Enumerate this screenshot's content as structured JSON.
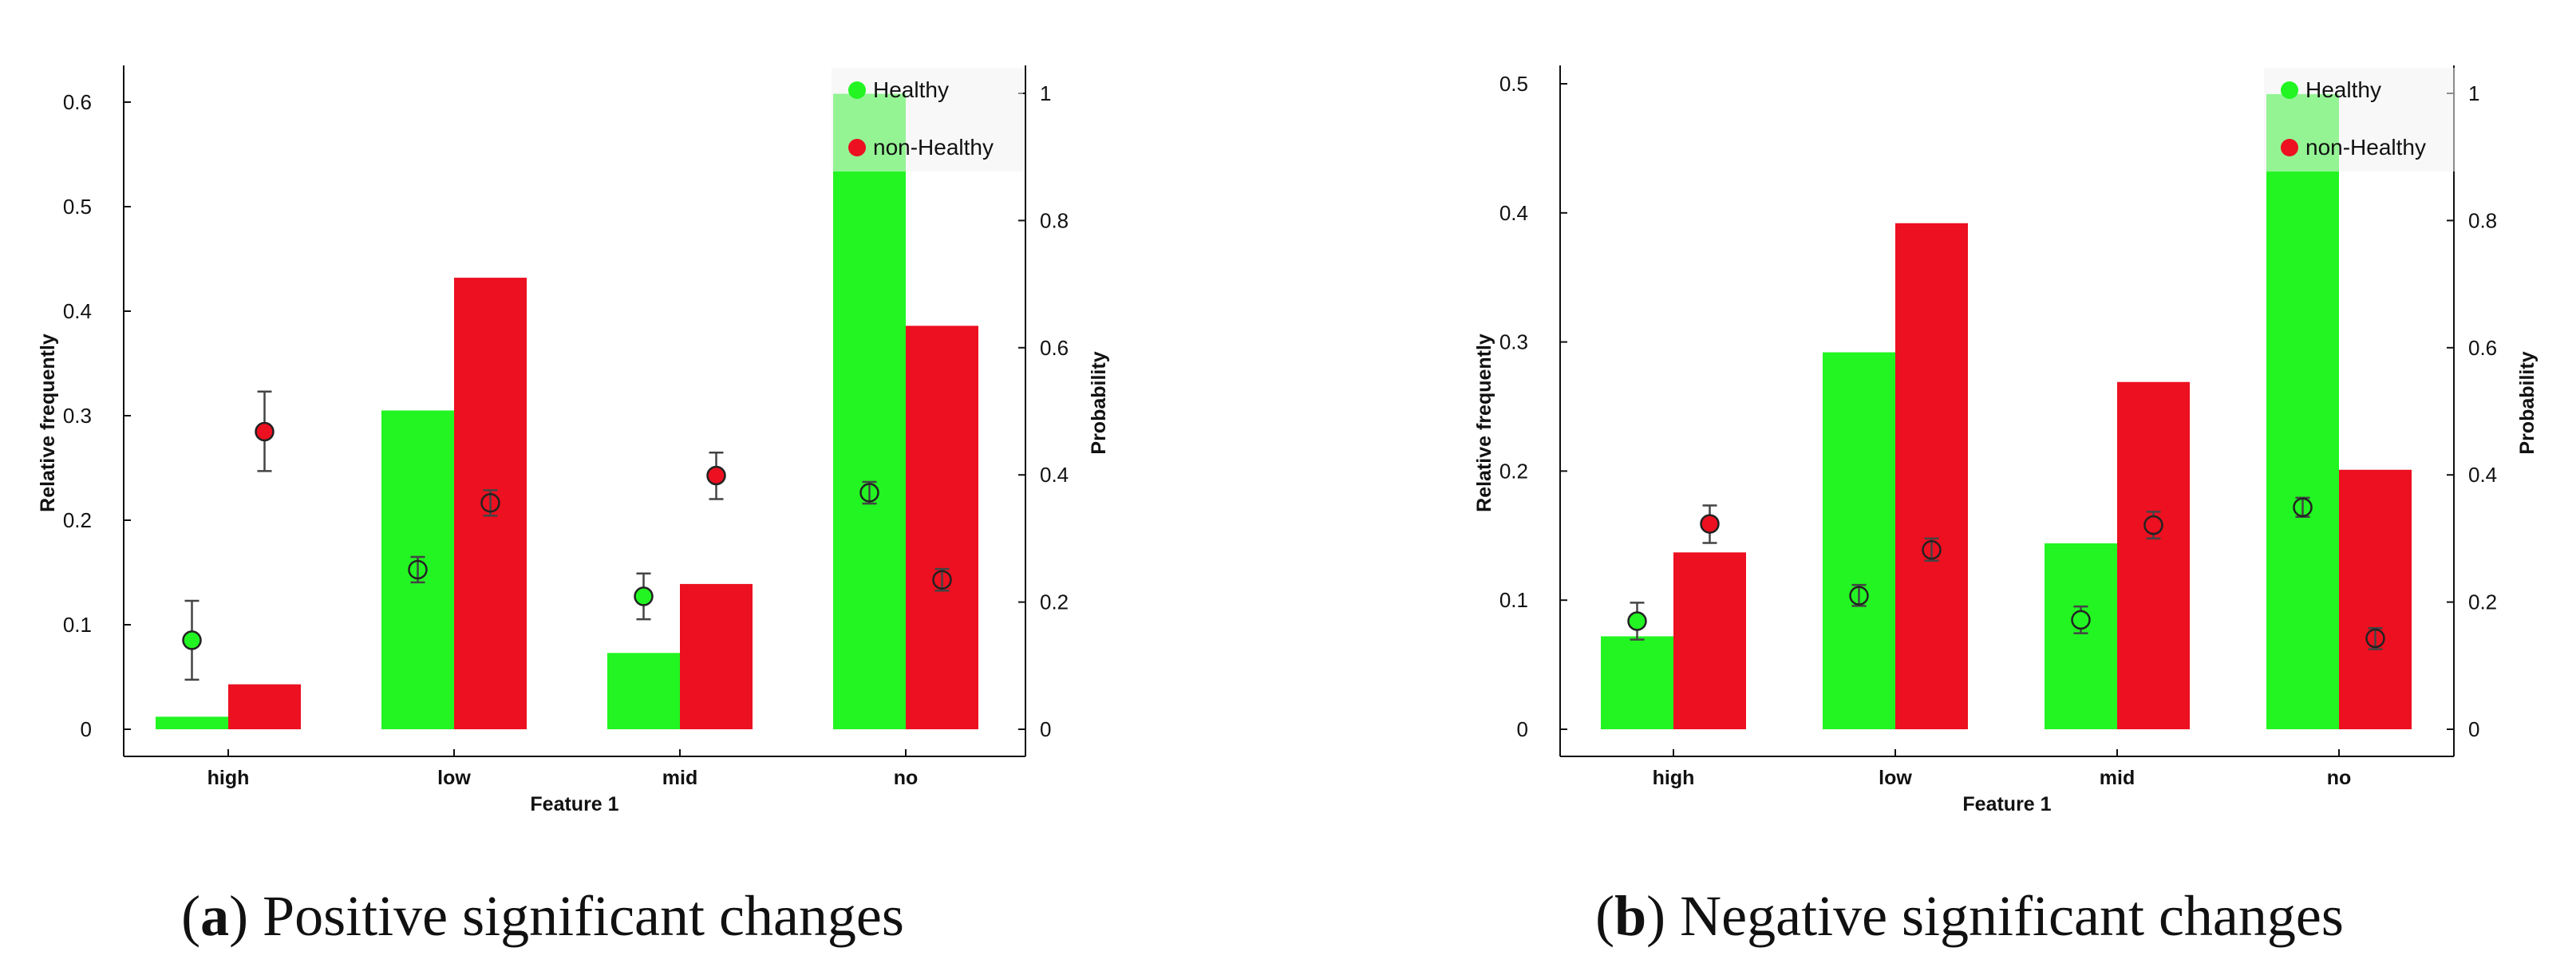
{
  "figure": {
    "colors": {
      "healthy": "#22f522",
      "non_healthy": "#ec1020",
      "legend_bg": "#f2f2f2",
      "axis": "#111111"
    },
    "captions": [
      {
        "letter": "a",
        "text": " Positive significant changes"
      },
      {
        "letter": "b",
        "text": " Negative significant changes"
      }
    ]
  },
  "chart_data": [
    {
      "type": "bar",
      "panel": "a",
      "xlabel": "Feature 1",
      "ylabel": "Relative frequently",
      "y2label": "Probability",
      "categories": [
        "high",
        "low",
        "mid",
        "no"
      ],
      "ylim": [
        0,
        0.62
      ],
      "yticks": [
        "0",
        "0.1",
        "0.2",
        "0.3",
        "0.4",
        "0.5",
        "0.6"
      ],
      "y2lim": [
        0,
        1
      ],
      "y2ticks": [
        "0",
        "0.2",
        "0.4",
        "0.6",
        "0.8",
        "1"
      ],
      "legend": [
        "Healthy",
        "non-Healthy"
      ],
      "legend_position": "top-right",
      "series": [
        {
          "name": "Healthy",
          "values": [
            0.012,
            0.305,
            0.073,
            0.608
          ]
        },
        {
          "name": "non-Healthy",
          "values": [
            0.043,
            0.432,
            0.139,
            0.386
          ]
        }
      ],
      "probability_points": [
        {
          "category": "high",
          "series": "Healthy",
          "value": 0.14,
          "err_low": 0.078,
          "err_high": 0.202,
          "filled": true
        },
        {
          "category": "high",
          "series": "non-Healthy",
          "value": 0.468,
          "err_low": 0.406,
          "err_high": 0.531,
          "filled": true
        },
        {
          "category": "low",
          "series": "Healthy",
          "value": 0.251,
          "err_low": 0.231,
          "err_high": 0.271,
          "filled": false
        },
        {
          "category": "low",
          "series": "non-Healthy",
          "value": 0.356,
          "err_low": 0.336,
          "err_high": 0.376,
          "filled": false
        },
        {
          "category": "mid",
          "series": "Healthy",
          "value": 0.209,
          "err_low": 0.173,
          "err_high": 0.245,
          "filled": true
        },
        {
          "category": "mid",
          "series": "non-Healthy",
          "value": 0.399,
          "err_low": 0.362,
          "err_high": 0.435,
          "filled": true
        },
        {
          "category": "no",
          "series": "Healthy",
          "value": 0.372,
          "err_low": 0.355,
          "err_high": 0.389,
          "filled": false
        },
        {
          "category": "no",
          "series": "non-Healthy",
          "value": 0.235,
          "err_low": 0.218,
          "err_high": 0.252,
          "filled": false
        }
      ]
    },
    {
      "type": "bar",
      "panel": "b",
      "xlabel": "Feature 1",
      "ylabel": "Relative frequently",
      "y2label": "Probability",
      "categories": [
        "high",
        "low",
        "mid",
        "no"
      ],
      "ylim": [
        0,
        0.5
      ],
      "yticks": [
        "0",
        "0.1",
        "0.2",
        "0.3",
        "0.4",
        "0.5"
      ],
      "y2lim": [
        0,
        1
      ],
      "y2ticks": [
        "0",
        "0.2",
        "0.4",
        "0.6",
        "0.8",
        "1"
      ],
      "legend": [
        "Healthy",
        "non-Healthy"
      ],
      "legend_position": "top-right",
      "series": [
        {
          "name": "Healthy",
          "values": [
            0.072,
            0.292,
            0.144,
            0.492
          ]
        },
        {
          "name": "non-Healthy",
          "values": [
            0.137,
            0.392,
            0.269,
            0.201
          ]
        }
      ],
      "probability_points": [
        {
          "category": "high",
          "series": "Healthy",
          "value": 0.17,
          "err_low": 0.141,
          "err_high": 0.199,
          "filled": true
        },
        {
          "category": "high",
          "series": "non-Healthy",
          "value": 0.323,
          "err_low": 0.293,
          "err_high": 0.352,
          "filled": true
        },
        {
          "category": "low",
          "series": "Healthy",
          "value": 0.21,
          "err_low": 0.194,
          "err_high": 0.227,
          "filled": false
        },
        {
          "category": "low",
          "series": "non-Healthy",
          "value": 0.282,
          "err_low": 0.265,
          "err_high": 0.3,
          "filled": false
        },
        {
          "category": "mid",
          "series": "Healthy",
          "value": 0.172,
          "err_low": 0.151,
          "err_high": 0.193,
          "filled": true
        },
        {
          "category": "mid",
          "series": "non-Healthy",
          "value": 0.321,
          "err_low": 0.3,
          "err_high": 0.342,
          "filled": true
        },
        {
          "category": "no",
          "series": "Healthy",
          "value": 0.349,
          "err_low": 0.334,
          "err_high": 0.364,
          "filled": false
        },
        {
          "category": "no",
          "series": "non-Healthy",
          "value": 0.143,
          "err_low": 0.126,
          "err_high": 0.159,
          "filled": false
        }
      ]
    }
  ]
}
